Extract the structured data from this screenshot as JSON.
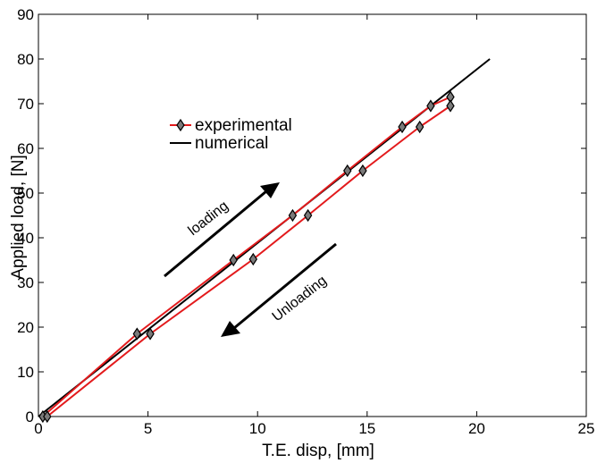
{
  "chart_data": {
    "type": "line",
    "xlabel": "T.E. disp, [mm]",
    "ylabel": "Applied load, [N]",
    "xlim": [
      0,
      25
    ],
    "ylim": [
      0,
      90
    ],
    "xticks": [
      0,
      5,
      10,
      15,
      20,
      25
    ],
    "yticks": [
      0,
      10,
      20,
      30,
      40,
      50,
      60,
      70,
      80,
      90
    ],
    "grid": false,
    "legend_position": "upper-left inside",
    "series": [
      {
        "name": "experimental",
        "color": "#e31a1c",
        "marker": "diamond",
        "points": [
          [
            0.2,
            0
          ],
          [
            4.5,
            18.5
          ],
          [
            8.9,
            35
          ],
          [
            11.6,
            45
          ],
          [
            14.1,
            55
          ],
          [
            16.6,
            64.8
          ],
          [
            17.9,
            69.5
          ],
          [
            18.8,
            71.5
          ],
          [
            18.8,
            69.5
          ],
          [
            17.4,
            64.8
          ],
          [
            14.8,
            55
          ],
          [
            12.3,
            45
          ],
          [
            9.8,
            35.2
          ],
          [
            5.1,
            18.5
          ],
          [
            0.4,
            0
          ]
        ]
      },
      {
        "name": "numerical",
        "color": "#000000",
        "marker": "none",
        "points": [
          [
            0,
            0
          ],
          [
            20.6,
            80
          ]
        ]
      }
    ],
    "annotations": [
      {
        "text": "loading",
        "direction": "up"
      },
      {
        "text": "Unloading",
        "direction": "down"
      }
    ]
  }
}
